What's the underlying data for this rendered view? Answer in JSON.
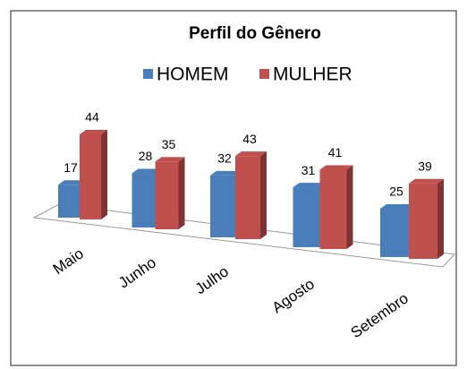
{
  "chart_data": {
    "type": "bar3d",
    "title": "Perfil do Gênero",
    "categories": [
      "Maio",
      "Junho",
      "Julho",
      "Agosto",
      "Setembro"
    ],
    "series": [
      {
        "name": "HOMEM",
        "color": "#4a7ebb",
        "values": [
          17,
          28,
          32,
          31,
          25
        ]
      },
      {
        "name": "MULHER",
        "color": "#c0504d",
        "values": [
          44,
          35,
          43,
          41,
          39
        ]
      }
    ],
    "legend": "top"
  }
}
